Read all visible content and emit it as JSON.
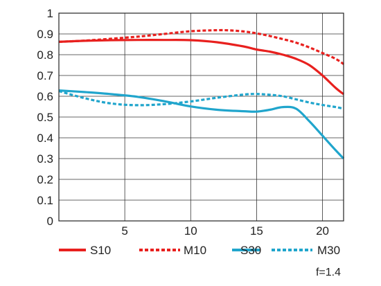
{
  "chart_data": {
    "type": "line",
    "xlim": [
      0,
      21.6
    ],
    "ylim": [
      0,
      1
    ],
    "x_ticks": [
      5,
      10,
      15,
      20
    ],
    "y_ticks": [
      0,
      0.1,
      0.2,
      0.3,
      0.4,
      0.5,
      0.6,
      0.7,
      0.8,
      0.9,
      1
    ],
    "x_tick_labels": [
      "5",
      "10",
      "15",
      "20"
    ],
    "y_tick_labels": [
      "0",
      "0.1",
      "0.2",
      "0.3",
      "0.4",
      "0.5",
      "0.6",
      "0.7",
      "0.8",
      "0.9",
      "1"
    ],
    "grid": true,
    "legend_position": "bottom",
    "series": [
      {
        "name": "S10",
        "color": "#e8201e",
        "dashed": false,
        "x": [
          0,
          2,
          4,
          6,
          8,
          10,
          12,
          14,
          15,
          16,
          17,
          18,
          19,
          20,
          21,
          21.6
        ],
        "y": [
          0.862,
          0.867,
          0.87,
          0.871,
          0.871,
          0.87,
          0.86,
          0.84,
          0.825,
          0.815,
          0.8,
          0.78,
          0.75,
          0.7,
          0.64,
          0.61
        ]
      },
      {
        "name": "M10",
        "color": "#e8201e",
        "dashed": true,
        "x": [
          0,
          2,
          4,
          6,
          8,
          10,
          12,
          13,
          14,
          15,
          16,
          17,
          18,
          19,
          20,
          21,
          21.6
        ],
        "y": [
          0.862,
          0.868,
          0.877,
          0.887,
          0.9,
          0.913,
          0.918,
          0.917,
          0.912,
          0.903,
          0.89,
          0.875,
          0.858,
          0.835,
          0.808,
          0.78,
          0.755
        ]
      },
      {
        "name": "S30",
        "color": "#20a5cc",
        "dashed": false,
        "x": [
          0,
          2,
          4,
          6,
          8,
          10,
          12,
          14,
          15,
          16,
          17,
          18,
          19,
          20,
          21,
          21.6
        ],
        "y": [
          0.628,
          0.62,
          0.61,
          0.597,
          0.576,
          0.551,
          0.535,
          0.528,
          0.526,
          0.535,
          0.548,
          0.54,
          0.48,
          0.41,
          0.34,
          0.3
        ]
      },
      {
        "name": "M30",
        "color": "#20a5cc",
        "dashed": true,
        "x": [
          0,
          2,
          4,
          6,
          8,
          10,
          12,
          14,
          15,
          16,
          17,
          18,
          19,
          20,
          21,
          21.6
        ],
        "y": [
          0.625,
          0.59,
          0.565,
          0.557,
          0.562,
          0.575,
          0.593,
          0.608,
          0.611,
          0.607,
          0.6,
          0.585,
          0.57,
          0.558,
          0.548,
          0.54
        ]
      }
    ],
    "annotation": "f=1.4"
  }
}
